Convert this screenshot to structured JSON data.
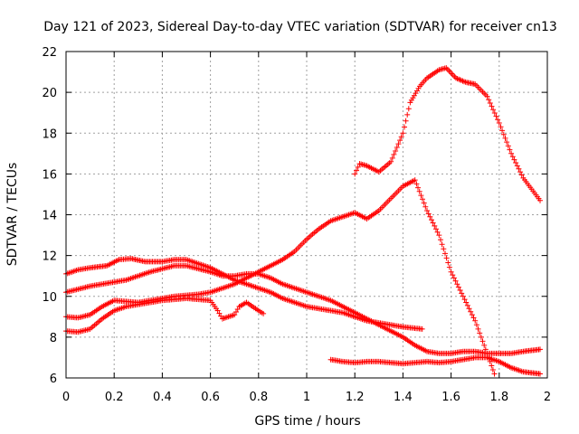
{
  "chart_data": {
    "type": "scatter",
    "title": "Day 121 of 2023, Sidereal Day-to-day VTEC variation (SDTVAR) for receiver cn13",
    "xlabel": "GPS time / hours",
    "ylabel": "SDTVAR / TECUs",
    "xlim": [
      0,
      2
    ],
    "ylim": [
      6,
      22
    ],
    "xticks": [
      0,
      0.2,
      0.4,
      0.6,
      0.8,
      1,
      1.2,
      1.4,
      1.6,
      1.8,
      2
    ],
    "xtick_labels": [
      "0",
      "0.2",
      "0.4",
      "0.6",
      "0.8",
      "1",
      "1.2",
      "1.4",
      "1.6",
      "1.8",
      "2"
    ],
    "yticks": [
      6,
      8,
      10,
      12,
      14,
      16,
      18,
      20,
      22
    ],
    "ytick_labels": [
      "6",
      "8",
      "10",
      "12",
      "14",
      "16",
      "18",
      "20",
      "22"
    ],
    "grid": true,
    "marker": "plus",
    "color": "#ff0000",
    "series": [
      {
        "name": "satellite-trace-1",
        "points": [
          [
            0,
            11.1
          ],
          [
            0.05,
            11.3
          ],
          [
            0.1,
            11.4
          ],
          [
            0.17,
            11.5
          ],
          [
            0.22,
            11.8
          ],
          [
            0.27,
            11.85
          ],
          [
            0.33,
            11.7
          ],
          [
            0.4,
            11.7
          ],
          [
            0.45,
            11.8
          ],
          [
            0.5,
            11.8
          ],
          [
            0.55,
            11.6
          ],
          [
            0.6,
            11.4
          ],
          [
            0.65,
            11.1
          ],
          [
            0.7,
            10.8
          ],
          [
            0.75,
            10.6
          ],
          [
            0.8,
            10.4
          ],
          [
            0.85,
            10.2
          ],
          [
            0.9,
            9.9
          ],
          [
            0.95,
            9.7
          ],
          [
            1.0,
            9.5
          ],
          [
            1.05,
            9.4
          ],
          [
            1.1,
            9.3
          ],
          [
            1.15,
            9.2
          ],
          [
            1.2,
            9.0
          ],
          [
            1.25,
            8.8
          ],
          [
            1.3,
            8.7
          ],
          [
            1.35,
            8.6
          ],
          [
            1.4,
            8.5
          ],
          [
            1.48,
            8.4
          ]
        ]
      },
      {
        "name": "satellite-trace-2",
        "points": [
          [
            0,
            10.2
          ],
          [
            0.05,
            10.35
          ],
          [
            0.1,
            10.5
          ],
          [
            0.15,
            10.6
          ],
          [
            0.2,
            10.7
          ],
          [
            0.25,
            10.8
          ],
          [
            0.3,
            11.0
          ],
          [
            0.35,
            11.2
          ],
          [
            0.4,
            11.35
          ],
          [
            0.45,
            11.5
          ],
          [
            0.5,
            11.5
          ],
          [
            0.55,
            11.35
          ],
          [
            0.6,
            11.2
          ],
          [
            0.65,
            11.0
          ],
          [
            0.7,
            11.0
          ],
          [
            0.75,
            11.1
          ],
          [
            0.8,
            11.1
          ],
          [
            0.85,
            10.9
          ],
          [
            0.9,
            10.6
          ],
          [
            0.95,
            10.4
          ],
          [
            1.0,
            10.2
          ],
          [
            1.05,
            10.0
          ],
          [
            1.1,
            9.8
          ],
          [
            1.15,
            9.5
          ],
          [
            1.2,
            9.2
          ],
          [
            1.25,
            8.9
          ],
          [
            1.3,
            8.6
          ],
          [
            1.35,
            8.3
          ],
          [
            1.4,
            8.0
          ],
          [
            1.45,
            7.6
          ],
          [
            1.5,
            7.3
          ],
          [
            1.55,
            7.2
          ],
          [
            1.6,
            7.2
          ],
          [
            1.65,
            7.3
          ],
          [
            1.7,
            7.3
          ],
          [
            1.75,
            7.2
          ],
          [
            1.8,
            7.2
          ],
          [
            1.85,
            7.2
          ],
          [
            1.9,
            7.3
          ],
          [
            1.97,
            7.4
          ]
        ]
      },
      {
        "name": "satellite-trace-3",
        "points": [
          [
            0,
            9.0
          ],
          [
            0.05,
            8.95
          ],
          [
            0.1,
            9.1
          ],
          [
            0.15,
            9.5
          ],
          [
            0.2,
            9.8
          ],
          [
            0.25,
            9.75
          ],
          [
            0.3,
            9.7
          ],
          [
            0.35,
            9.8
          ],
          [
            0.4,
            9.9
          ],
          [
            0.45,
            10.0
          ],
          [
            0.5,
            10.05
          ],
          [
            0.55,
            10.1
          ],
          [
            0.6,
            10.2
          ],
          [
            0.65,
            10.4
          ],
          [
            0.7,
            10.6
          ],
          [
            0.75,
            10.9
          ],
          [
            0.8,
            11.2
          ],
          [
            0.85,
            11.5
          ],
          [
            0.9,
            11.8
          ],
          [
            0.95,
            12.2
          ],
          [
            1.0,
            12.8
          ],
          [
            1.05,
            13.3
          ],
          [
            1.1,
            13.7
          ],
          [
            1.15,
            13.9
          ],
          [
            1.2,
            14.1
          ],
          [
            1.25,
            13.8
          ],
          [
            1.3,
            14.2
          ],
          [
            1.35,
            14.8
          ],
          [
            1.4,
            15.4
          ],
          [
            1.45,
            15.7
          ],
          [
            1.5,
            14.2
          ],
          [
            1.55,
            13.0
          ],
          [
            1.6,
            11.2
          ],
          [
            1.65,
            10.0
          ],
          [
            1.7,
            8.8
          ],
          [
            1.75,
            7.2
          ],
          [
            1.78,
            6.2
          ]
        ]
      },
      {
        "name": "satellite-trace-4",
        "points": [
          [
            0,
            8.3
          ],
          [
            0.05,
            8.25
          ],
          [
            0.1,
            8.4
          ],
          [
            0.15,
            8.9
          ],
          [
            0.2,
            9.3
          ],
          [
            0.25,
            9.5
          ],
          [
            0.3,
            9.6
          ],
          [
            0.35,
            9.7
          ],
          [
            0.4,
            9.8
          ],
          [
            0.45,
            9.85
          ],
          [
            0.5,
            9.9
          ],
          [
            0.55,
            9.85
          ],
          [
            0.6,
            9.8
          ],
          [
            0.63,
            9.3
          ],
          [
            0.65,
            8.9
          ],
          [
            0.7,
            9.1
          ],
          [
            0.72,
            9.5
          ],
          [
            0.75,
            9.7
          ],
          [
            0.8,
            9.3
          ],
          [
            0.82,
            9.15
          ]
        ]
      },
      {
        "name": "satellite-trace-5",
        "points": [
          [
            1.1,
            6.9
          ],
          [
            1.15,
            6.8
          ],
          [
            1.2,
            6.75
          ],
          [
            1.25,
            6.8
          ],
          [
            1.3,
            6.8
          ],
          [
            1.35,
            6.75
          ],
          [
            1.4,
            6.7
          ],
          [
            1.45,
            6.75
          ],
          [
            1.5,
            6.8
          ],
          [
            1.55,
            6.75
          ],
          [
            1.6,
            6.8
          ],
          [
            1.65,
            6.9
          ],
          [
            1.7,
            7.0
          ],
          [
            1.75,
            7.0
          ],
          [
            1.8,
            6.8
          ],
          [
            1.85,
            6.5
          ],
          [
            1.9,
            6.3
          ],
          [
            1.97,
            6.2
          ]
        ]
      },
      {
        "name": "satellite-trace-6",
        "points": [
          [
            1.2,
            16.0
          ],
          [
            1.22,
            16.5
          ],
          [
            1.25,
            16.4
          ],
          [
            1.3,
            16.1
          ],
          [
            1.35,
            16.6
          ],
          [
            1.4,
            18.0
          ],
          [
            1.43,
            19.5
          ],
          [
            1.47,
            20.3
          ],
          [
            1.5,
            20.7
          ],
          [
            1.55,
            21.1
          ],
          [
            1.58,
            21.2
          ],
          [
            1.62,
            20.7
          ],
          [
            1.66,
            20.5
          ],
          [
            1.7,
            20.4
          ],
          [
            1.75,
            19.8
          ],
          [
            1.8,
            18.5
          ],
          [
            1.85,
            17.0
          ],
          [
            1.9,
            15.8
          ],
          [
            1.97,
            14.7
          ]
        ]
      }
    ]
  }
}
